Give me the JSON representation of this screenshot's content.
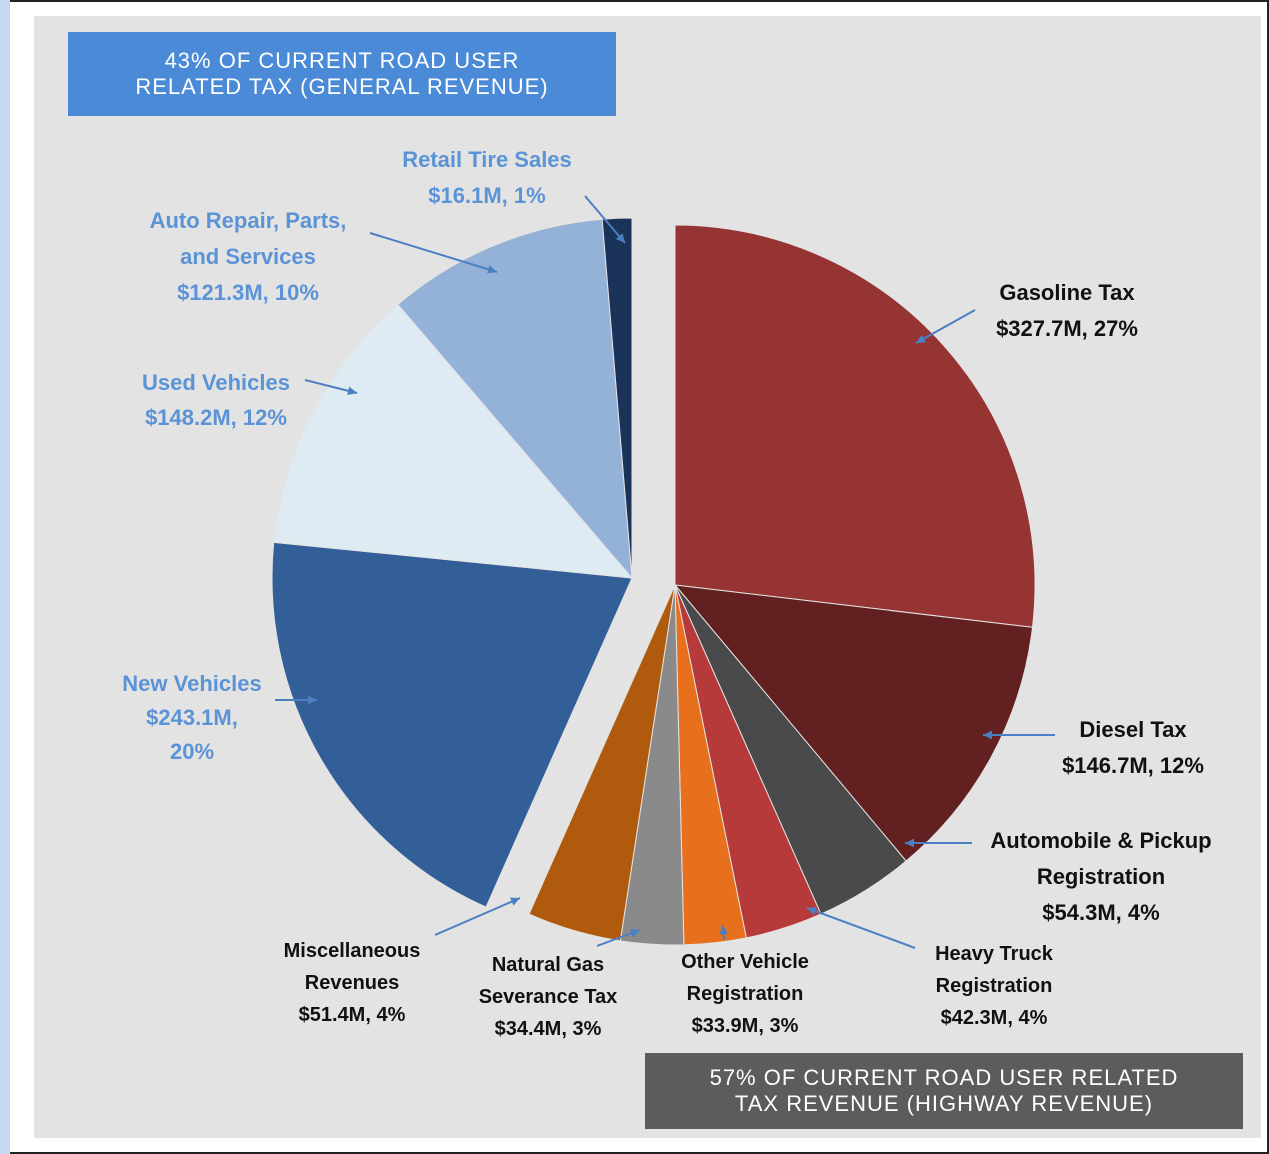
{
  "header_general": {
    "line1": "43% OF CURRENT ROAD USER",
    "line2": "RELATED TAX (GENERAL REVENUE)"
  },
  "header_highway": {
    "line1": "57% OF CURRENT ROAD USER RELATED",
    "line2": "TAX REVENUE (HIGHWAY REVENUE)"
  },
  "chart_data": {
    "type": "pie",
    "unit": "$M",
    "slices": [
      {
        "name": "Gasoline Tax",
        "value": 327.7,
        "percent": 27,
        "color": "#963434",
        "label_lines": [
          "Gasoline Tax",
          "$327.7M, 27%"
        ]
      },
      {
        "name": "Diesel Tax",
        "value": 146.7,
        "percent": 12,
        "color": "#632020",
        "label_lines": [
          "Diesel Tax",
          "$146.7M, 12%"
        ]
      },
      {
        "name": "Automobile & Pickup Registration",
        "value": 54.3,
        "percent": 4,
        "color": "#4a4a4a",
        "label_lines": [
          "Automobile & Pickup",
          "Registration",
          "$54.3M, 4%"
        ]
      },
      {
        "name": "Heavy Truck Registration",
        "value": 42.3,
        "percent": 4,
        "color": "#b73a3a",
        "label_lines": [
          "Heavy Truck",
          "Registration",
          "$42.3M, 4%"
        ]
      },
      {
        "name": "Other Vehicle Registration",
        "value": 33.9,
        "percent": 3,
        "color": "#e8701c",
        "label_lines": [
          "Other Vehicle",
          "Registration",
          "$33.9M, 3%"
        ]
      },
      {
        "name": "Natural Gas Severance Tax",
        "value": 34.4,
        "percent": 3,
        "color": "#8a8a8a",
        "label_lines": [
          "Natural Gas",
          "Severance Tax",
          "$34.4M, 3%"
        ]
      },
      {
        "name": "Miscellaneous Revenues",
        "value": 51.4,
        "percent": 4,
        "color": "#b05a0e",
        "label_lines": [
          "Miscellaneous",
          "Revenues",
          "$51.4M, 4%"
        ]
      },
      {
        "name": "New Vehicles",
        "value": 243.1,
        "percent": 20,
        "color": "#335f98",
        "label_lines": [
          "New Vehicles",
          "$243.1M,",
          "20%"
        ]
      },
      {
        "name": "Used Vehicles",
        "value": 148.2,
        "percent": 12,
        "color": "#deebf3",
        "label_lines": [
          "Used Vehicles",
          "$148.2M, 12%"
        ]
      },
      {
        "name": "Auto Repair, Parts, and Services",
        "value": 121.3,
        "percent": 10,
        "color": "#94b1d8",
        "label_lines": [
          "Auto Repair, Parts,",
          "and Services",
          "$121.3M, 10%"
        ]
      },
      {
        "name": "Retail Tire Sales",
        "value": 16.1,
        "percent": 1,
        "color": "#1b3358",
        "label_lines": [
          "Retail Tire Sales",
          "$16.1M, 1%"
        ]
      }
    ]
  }
}
